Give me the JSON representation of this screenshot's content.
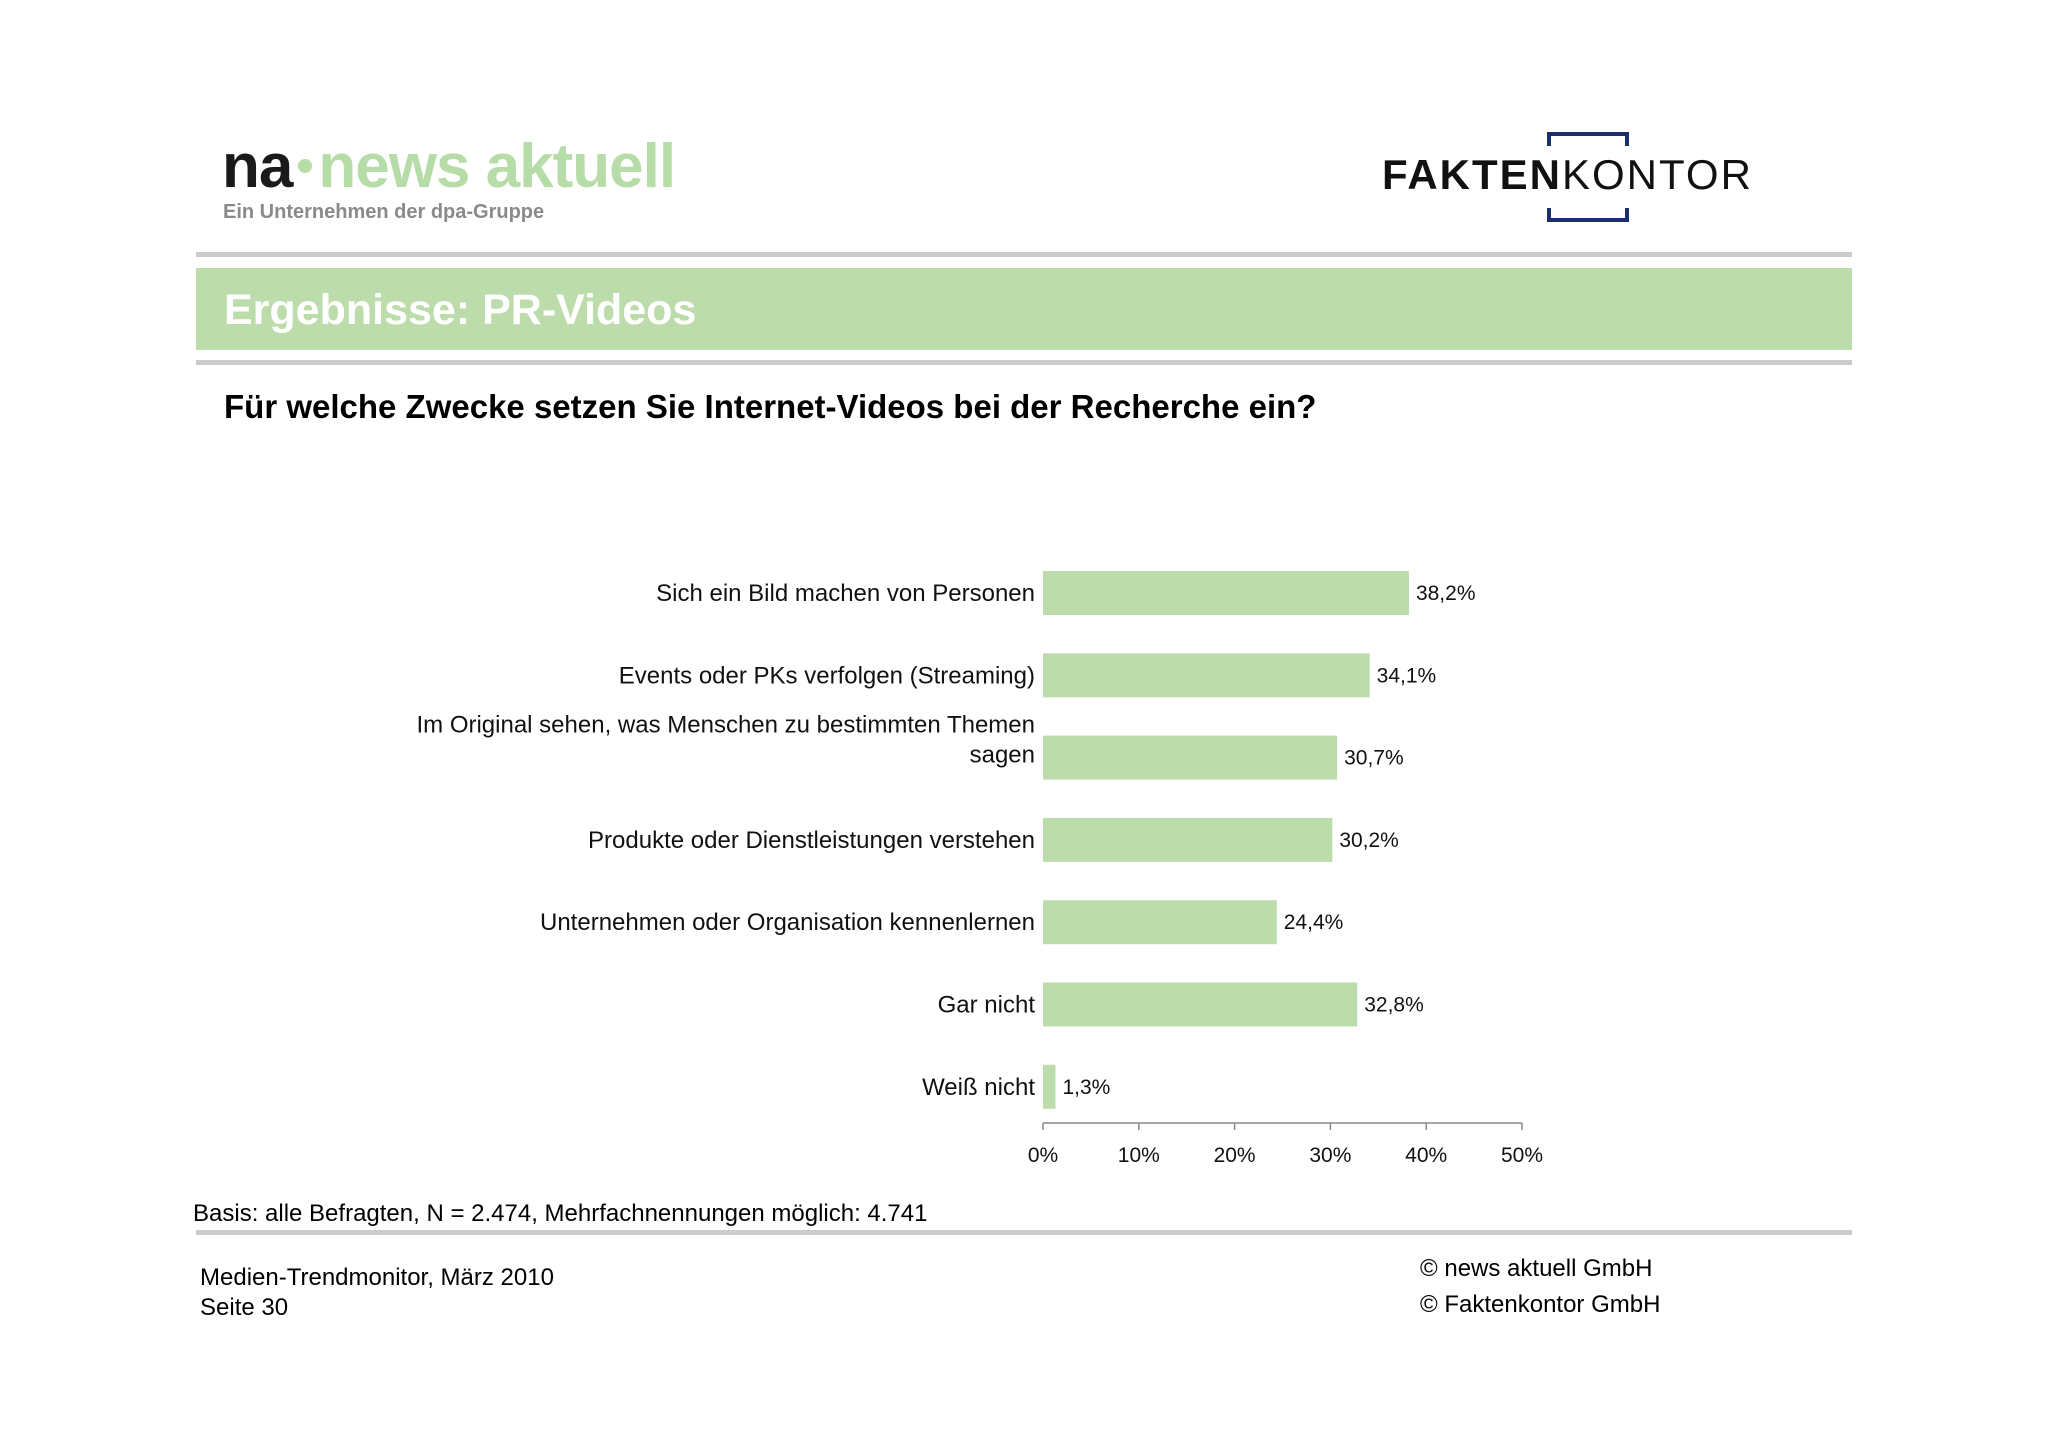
{
  "header": {
    "na_logo": {
      "na": "na",
      "news": "news aktuell",
      "subtitle": "Ein Unternehmen der dpa-Gruppe"
    },
    "fk_logo": {
      "bold": "FAKTEN",
      "light": "KONTOR"
    },
    "banner_title": "Ergebnisse: PR-Videos",
    "question": "Für welche Zwecke setzen Sie Internet-Videos bei der Recherche ein?"
  },
  "colors": {
    "bar": "#bcdcac",
    "banner": "#bcdcac",
    "logo_green": "#b6dca8",
    "fk_blue": "#1b2e6e",
    "rule": "#cccccc"
  },
  "chart_data": {
    "type": "bar",
    "orientation": "horizontal",
    "categories": [
      [
        "Sich ein Bild machen von Personen"
      ],
      [
        "Events oder PKs verfolgen (Streaming)"
      ],
      [
        "Im Original sehen, was Menschen zu bestimmten Themen",
        "sagen"
      ],
      [
        "Produkte oder Dienstleistungen verstehen"
      ],
      [
        "Unternehmen oder Organisation kennenlernen"
      ],
      [
        "Gar nicht"
      ],
      [
        "Weiß nicht"
      ]
    ],
    "values": [
      38.2,
      34.1,
      30.7,
      30.2,
      24.4,
      32.8,
      1.3
    ],
    "value_labels": [
      "38,2%",
      "34,1%",
      "30,7%",
      "30,2%",
      "24,4%",
      "32,8%",
      "1,3%"
    ],
    "xlim": [
      0,
      50
    ],
    "xticks": [
      0,
      10,
      20,
      30,
      40,
      50
    ],
    "xtick_labels": [
      "0%",
      "10%",
      "20%",
      "30%",
      "40%",
      "50%"
    ],
    "grid": false,
    "legend": "none"
  },
  "footer": {
    "basis": "Basis: alle Befragten, N = 2.474, Mehrfachnennungen möglich: 4.741",
    "left": [
      "Medien-Trendmonitor, März 2010",
      "Seite 30"
    ],
    "right": [
      "© news aktuell GmbH",
      "© Faktenkontor GmbH"
    ]
  }
}
